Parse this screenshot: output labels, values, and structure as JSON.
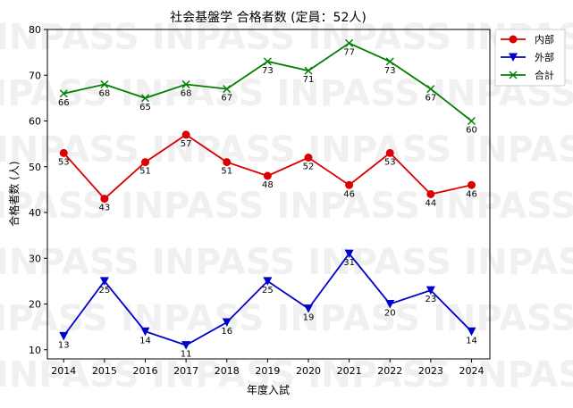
{
  "watermark": {
    "text": "INPASS INPASS INPASS INPASS"
  },
  "chart_data": {
    "type": "line",
    "title": "社会基盤学 合格者数 (定員：52人)",
    "xlabel": "年度入試",
    "ylabel": "合格者数 (人)",
    "x": [
      2014,
      2015,
      2016,
      2017,
      2018,
      2019,
      2020,
      2021,
      2022,
      2023,
      2024
    ],
    "xlim": [
      2013.6,
      2024.45
    ],
    "ylim": [
      8,
      80
    ],
    "yticks": [
      10,
      20,
      30,
      40,
      50,
      60,
      70,
      80
    ],
    "grid": false,
    "legend_position": "top-right (outside plot)",
    "series": [
      {
        "name": "内部",
        "color": "#dd0000",
        "marker": "circle",
        "values": [
          53,
          43,
          51,
          57,
          51,
          48,
          52,
          46,
          53,
          44,
          46
        ]
      },
      {
        "name": "外部",
        "color": "#0000cc",
        "marker": "triangle-down",
        "values": [
          13,
          25,
          14,
          11,
          16,
          25,
          19,
          31,
          20,
          23,
          14
        ]
      },
      {
        "name": "合計",
        "color": "#008000",
        "marker": "x",
        "values": [
          66,
          68,
          65,
          68,
          67,
          73,
          71,
          77,
          73,
          67,
          60
        ]
      }
    ]
  }
}
